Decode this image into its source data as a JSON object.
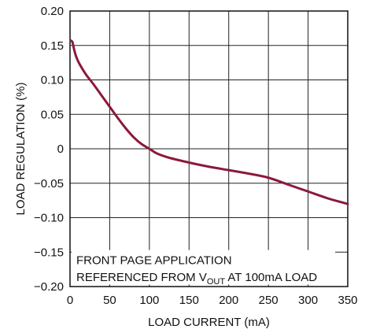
{
  "chart_data": {
    "type": "line",
    "title": "",
    "xlabel": "LOAD CURRENT (mA)",
    "ylabel": "LOAD REGULATION (%)",
    "xlim": [
      0,
      350
    ],
    "ylim": [
      -0.2,
      0.2
    ],
    "grid": true,
    "legend": "none",
    "x_ticks": [
      "0",
      "50",
      "100",
      "150",
      "200",
      "250",
      "300",
      "350"
    ],
    "y_ticks": [
      "0.20",
      "0.15",
      "0.10",
      "0.05",
      "0",
      "−0.05",
      "−0.10",
      "−0.15",
      "−0.20"
    ],
    "annotation": {
      "line1": "FRONT PAGE APPLICATION",
      "line2_prefix": "REFERENCED FROM V",
      "line2_sub": "OUT",
      "line2_suffix": " AT 100mA LOAD"
    },
    "series": [
      {
        "color": "#8b1a3a",
        "x": [
          1,
          3,
          5,
          8,
          12,
          20,
          30,
          40,
          50,
          60,
          70,
          80,
          90,
          100,
          110,
          125,
          150,
          175,
          200,
          225,
          250,
          275,
          300,
          325,
          350
        ],
        "y": [
          0.157,
          0.155,
          0.145,
          0.133,
          0.123,
          0.108,
          0.093,
          0.077,
          0.061,
          0.045,
          0.03,
          0.017,
          0.007,
          0.0,
          -0.007,
          -0.013,
          -0.02,
          -0.026,
          -0.031,
          -0.036,
          -0.042,
          -0.052,
          -0.062,
          -0.072,
          -0.08
        ]
      }
    ]
  }
}
